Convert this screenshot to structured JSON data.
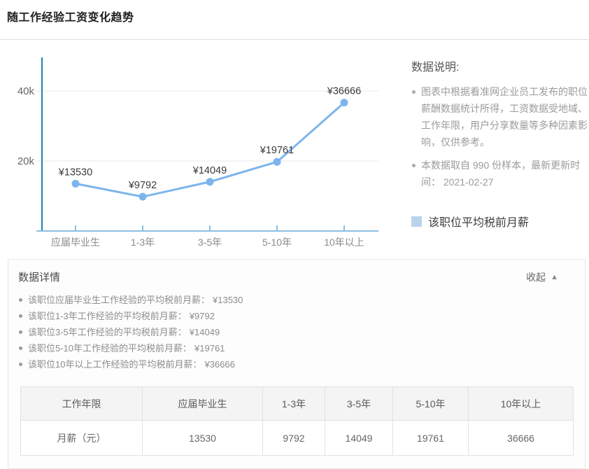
{
  "page": {
    "title": "随工作经验工资变化趋势"
  },
  "chart_data": {
    "type": "line",
    "categories": [
      "应届毕业生",
      "1-3年",
      "3-5年",
      "5-10年",
      "10年以上"
    ],
    "series": [
      {
        "name": "该职位平均税前月薪",
        "values": [
          13530,
          9792,
          14049,
          19761,
          36666
        ]
      }
    ],
    "point_labels": [
      "¥13530",
      "¥9792",
      "¥14049",
      "¥19761",
      "¥36666"
    ],
    "ytick_values": [
      20000,
      40000
    ],
    "ytick_labels": [
      "20k",
      "40k"
    ],
    "ylim": [
      0,
      50000
    ],
    "grid": true,
    "legend_position": "right",
    "line_color": "#7cb5ec",
    "point_color": "#7cb5ec",
    "yaxis_color": "#1a86ad",
    "xaxis_color": "#8bbfe4",
    "grid_color": "#e8e8e8",
    "point_label_color": "#3a3a3a",
    "ytick_label_color": "#666666",
    "xtick_label_color": "#8a8a8a"
  },
  "notes": {
    "heading": "数据说明:",
    "items": [
      "图表中根据看准网企业员工发布的职位薪酬数据统计所得，工资数据受地域、工作年限，用户分享数量等多种因素影响，仅供参考。",
      "本数据取自 990 份样本，最新更新时间： 2021-02-27"
    ],
    "legend": {
      "label": "该职位平均税前月薪",
      "swatch_color": "#b9d3ec"
    }
  },
  "details": {
    "heading": "数据详情",
    "collapse_label": "收起",
    "collapse_icon": "▲",
    "items": [
      {
        "label": "该职位应届毕业生工作经验的平均税前月薪：",
        "value": "¥13530"
      },
      {
        "label": "该职位1-3年工作经验的平均税前月薪：",
        "value": "¥9792"
      },
      {
        "label": "该职位3-5年工作经验的平均税前月薪：",
        "value": "¥14049"
      },
      {
        "label": "该职位5-10年工作经验的平均税前月薪：",
        "value": "¥19761"
      },
      {
        "label": "该职位10年以上工作经验的平均税前月薪：",
        "value": "¥36666"
      }
    ],
    "table": {
      "headers": [
        "工作年限",
        "应届毕业生",
        "1-3年",
        "3-5年",
        "5-10年",
        "10年以上"
      ],
      "rows": [
        [
          "月薪（元）",
          "13530",
          "9792",
          "14049",
          "19761",
          "36666"
        ]
      ]
    }
  }
}
